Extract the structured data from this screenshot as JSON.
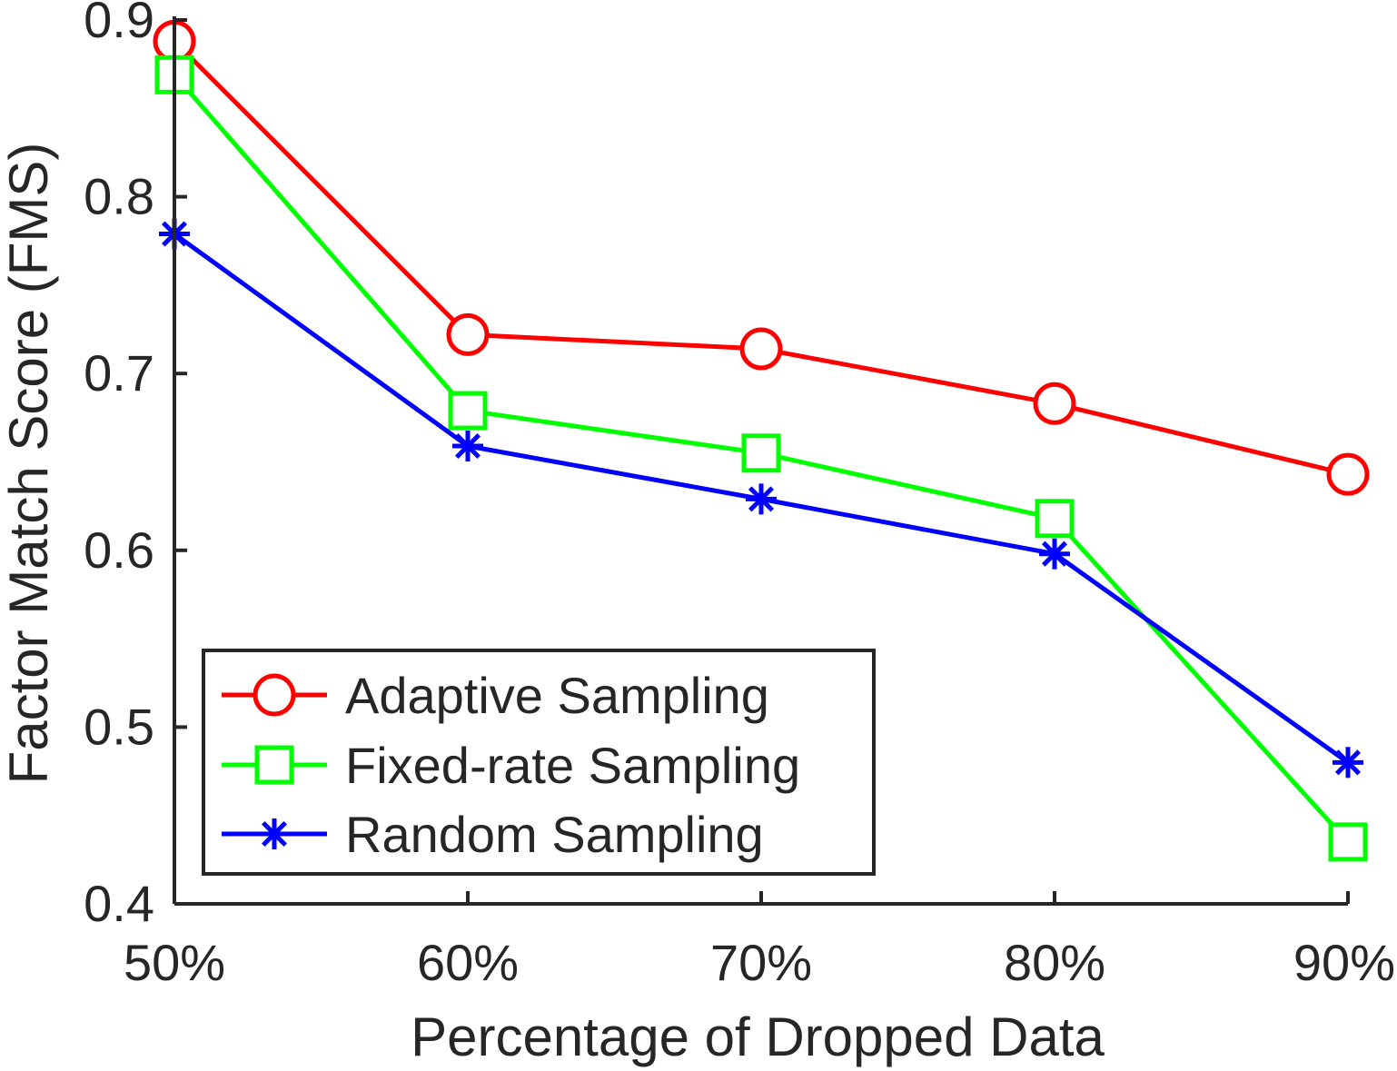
{
  "chart_data": {
    "type": "line",
    "title": "",
    "xlabel": "Percentage of Dropped Data",
    "ylabel": "Factor Match Score (FMS)",
    "categories": [
      "50%",
      "60%",
      "70%",
      "80%",
      "90%"
    ],
    "ylim": [
      0.4,
      0.9
    ],
    "yticks": [
      "0.4",
      "0.5",
      "0.6",
      "0.7",
      "0.8",
      "0.9"
    ],
    "grid": false,
    "legend_position": "bottom-left",
    "series": [
      {
        "name": "Adaptive Sampling",
        "color": "#ff0000",
        "marker": "circle",
        "values": [
          0.888,
          0.722,
          0.714,
          0.683,
          0.643
        ]
      },
      {
        "name": "Fixed-rate Sampling",
        "color": "#00ff00",
        "marker": "square",
        "values": [
          0.869,
          0.679,
          0.655,
          0.618,
          0.435
        ]
      },
      {
        "name": "Random Sampling",
        "color": "#0000ff",
        "marker": "asterisk",
        "values": [
          0.779,
          0.659,
          0.629,
          0.598,
          0.48
        ]
      }
    ]
  }
}
